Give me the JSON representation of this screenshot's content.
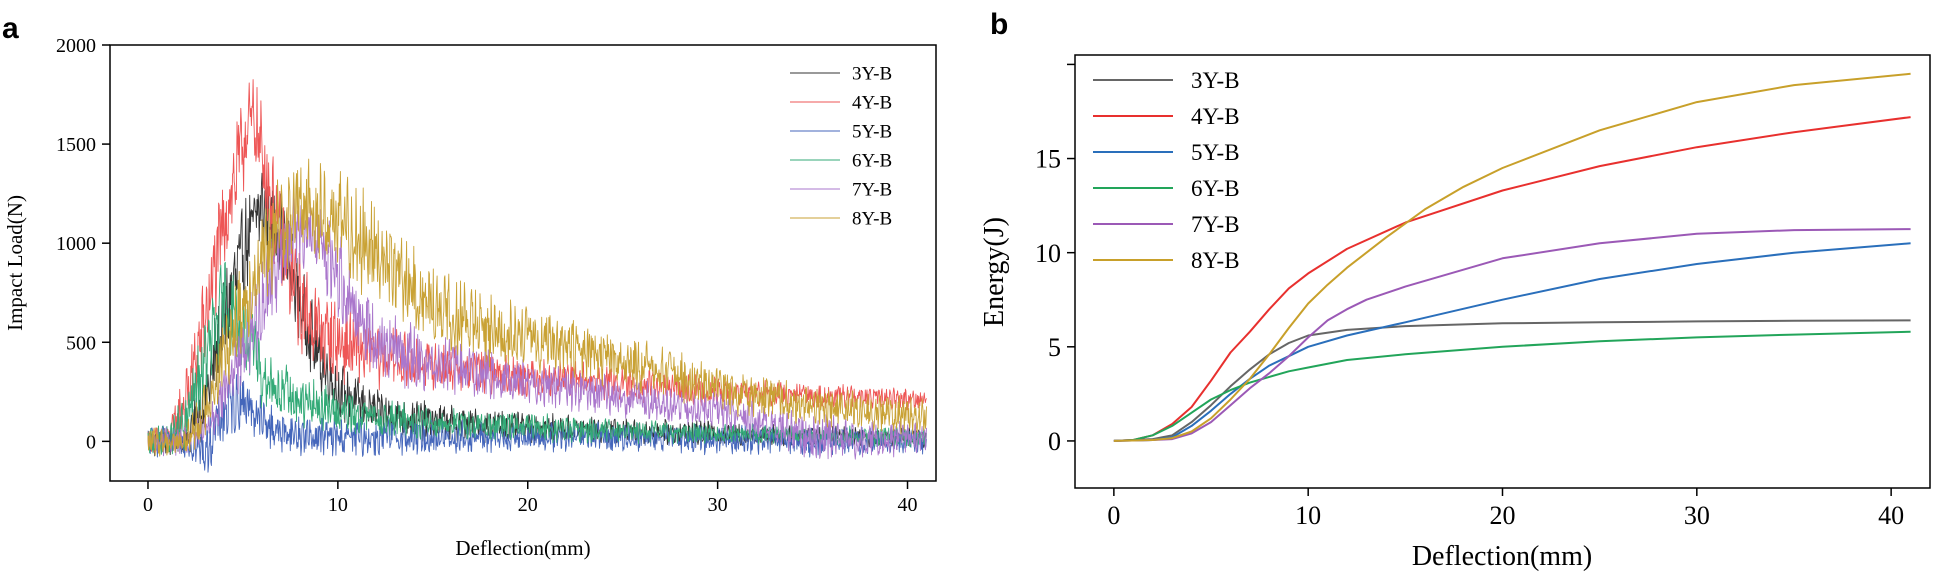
{
  "figure": {
    "panel_a_label": "a",
    "panel_b_label": "b"
  },
  "chart_data": [
    {
      "type": "line",
      "panel": "a",
      "title": "",
      "xlabel": "Deflection(mm)",
      "ylabel": "Impact Load(N)",
      "xlim": [
        -2,
        41.5
      ],
      "ylim": [
        -200,
        2000
      ],
      "xticks": [
        0,
        10,
        20,
        30,
        40
      ],
      "yticks": [
        0,
        500,
        1000,
        1500,
        2000
      ],
      "grid": false,
      "legend_position": "top-right",
      "noise_note": "high-frequency oscillation around the mean curve",
      "series": [
        {
          "name": "3Y-B",
          "color": "#333333",
          "x": [
            0,
            1,
            2,
            3,
            4,
            5,
            6,
            7,
            8,
            9,
            10,
            12,
            14,
            16,
            20,
            25,
            30,
            35,
            41
          ],
          "y": [
            0,
            0,
            10,
            200,
            600,
            950,
            1200,
            1050,
            700,
            420,
            250,
            150,
            110,
            90,
            70,
            50,
            40,
            30,
            20
          ],
          "amplitude": [
            60,
            60,
            80,
            150,
            200,
            200,
            180,
            180,
            160,
            140,
            120,
            90,
            80,
            70,
            60,
            50,
            50,
            40,
            40
          ]
        },
        {
          "name": "4Y-B",
          "color": "#ee5555",
          "x": [
            0,
            1,
            2,
            3,
            4,
            5,
            5.5,
            6,
            7,
            8,
            9,
            10,
            12,
            14,
            16,
            20,
            25,
            30,
            35,
            41
          ],
          "y": [
            0,
            0,
            200,
            600,
            1100,
            1500,
            1650,
            1450,
            1000,
            700,
            560,
            500,
            430,
            400,
            370,
            330,
            290,
            250,
            230,
            210
          ],
          "amplitude": [
            60,
            60,
            150,
            200,
            220,
            200,
            150,
            200,
            220,
            200,
            180,
            160,
            130,
            110,
            90,
            80,
            70,
            60,
            50,
            40
          ]
        },
        {
          "name": "5Y-B",
          "color": "#4466bb",
          "x": [
            0,
            1,
            2,
            3,
            4,
            5,
            6,
            7,
            8,
            10,
            12,
            14,
            16,
            20,
            25,
            30,
            35,
            41
          ],
          "y": [
            0,
            0,
            0,
            -50,
            150,
            220,
            100,
            50,
            30,
            20,
            20,
            20,
            20,
            20,
            20,
            10,
            0,
            0
          ],
          "amplitude": [
            60,
            60,
            60,
            100,
            150,
            120,
            100,
            90,
            80,
            80,
            80,
            70,
            70,
            60,
            60,
            60,
            60,
            50
          ]
        },
        {
          "name": "6Y-B",
          "color": "#33aa77",
          "x": [
            0,
            1,
            2,
            3,
            4,
            5,
            6,
            7,
            8,
            10,
            12,
            14,
            16,
            20,
            25,
            30,
            35,
            41
          ],
          "y": [
            0,
            0,
            100,
            400,
            700,
            550,
            350,
            250,
            200,
            150,
            120,
            100,
            90,
            70,
            50,
            40,
            30,
            20
          ],
          "amplitude": [
            60,
            60,
            120,
            180,
            200,
            180,
            150,
            130,
            110,
            90,
            80,
            70,
            60,
            60,
            50,
            40,
            40,
            40
          ]
        },
        {
          "name": "7Y-B",
          "color": "#aa77cc",
          "x": [
            0,
            1,
            2,
            3,
            4,
            5,
            6,
            7,
            7.5,
            8,
            9,
            10,
            11,
            12,
            14,
            16,
            20,
            25,
            30,
            33,
            35,
            38,
            41
          ],
          "y": [
            0,
            0,
            0,
            50,
            250,
            450,
            700,
            950,
            1050,
            1080,
            1000,
            850,
            650,
            520,
            420,
            380,
            300,
            220,
            150,
            80,
            20,
            10,
            20
          ],
          "amplitude": [
            60,
            60,
            60,
            80,
            120,
            150,
            180,
            180,
            150,
            140,
            150,
            180,
            180,
            160,
            130,
            110,
            90,
            80,
            70,
            80,
            90,
            80,
            60
          ]
        },
        {
          "name": "8Y-B",
          "color": "#c9a235",
          "x": [
            0,
            1,
            2,
            3,
            4,
            5,
            6,
            7,
            8,
            9,
            10,
            11,
            12,
            14,
            16,
            18,
            20,
            22,
            25,
            28,
            30,
            35,
            41
          ],
          "y": [
            0,
            0,
            0,
            150,
            450,
            700,
            900,
            1100,
            1200,
            1150,
            1100,
            1050,
            950,
            750,
            620,
            560,
            520,
            480,
            400,
            320,
            260,
            180,
            120
          ],
          "amplitude": [
            60,
            60,
            60,
            120,
            180,
            200,
            200,
            200,
            200,
            200,
            210,
            220,
            200,
            180,
            160,
            140,
            130,
            120,
            110,
            100,
            90,
            80,
            70
          ]
        }
      ]
    },
    {
      "type": "line",
      "panel": "b",
      "title": "",
      "xlabel": "Deflection(mm)",
      "ylabel": "Energy(J)",
      "xlim": [
        -2,
        42
      ],
      "ylim": [
        -2.5,
        20.5
      ],
      "xticks": [
        0,
        10,
        20,
        30,
        40
      ],
      "yticks": [
        0,
        5,
        10,
        15
      ],
      "grid": false,
      "legend_position": "top-left",
      "series": [
        {
          "name": "3Y-B",
          "color": "#666666",
          "x": [
            0,
            2,
            3,
            4,
            5,
            6,
            7,
            8,
            9,
            10,
            12,
            15,
            20,
            25,
            30,
            35,
            41
          ],
          "y": [
            0,
            0.1,
            0.3,
            1.0,
            1.9,
            2.9,
            3.8,
            4.6,
            5.2,
            5.6,
            5.9,
            6.1,
            6.25,
            6.3,
            6.35,
            6.38,
            6.4
          ]
        },
        {
          "name": "4Y-B",
          "color": "#e8302e",
          "x": [
            0,
            1,
            2,
            3,
            4,
            5,
            6,
            7,
            8,
            9,
            10,
            12,
            15,
            20,
            25,
            30,
            35,
            41
          ],
          "y": [
            0,
            0.05,
            0.3,
            0.9,
            1.8,
            3.2,
            4.7,
            5.8,
            7.0,
            8.1,
            8.9,
            10.2,
            11.6,
            13.3,
            14.6,
            15.6,
            16.4,
            17.2
          ]
        },
        {
          "name": "5Y-B",
          "color": "#2a6fbb",
          "x": [
            0,
            2,
            3,
            4,
            5,
            6,
            7,
            8,
            9,
            10,
            12,
            15,
            20,
            25,
            30,
            35,
            41
          ],
          "y": [
            0,
            0.05,
            0.2,
            0.8,
            1.6,
            2.5,
            3.3,
            4.0,
            4.5,
            5.0,
            5.6,
            6.3,
            7.5,
            8.6,
            9.4,
            10.0,
            10.5
          ]
        },
        {
          "name": "6Y-B",
          "color": "#22a55a",
          "x": [
            0,
            1,
            2,
            3,
            4,
            5,
            6,
            7,
            8,
            9,
            10,
            12,
            15,
            20,
            25,
            30,
            35,
            41
          ],
          "y": [
            0,
            0.05,
            0.3,
            0.8,
            1.5,
            2.2,
            2.7,
            3.1,
            3.4,
            3.7,
            3.9,
            4.3,
            4.6,
            5.0,
            5.3,
            5.5,
            5.65,
            5.8
          ]
        },
        {
          "name": "7Y-B",
          "color": "#9b59b6",
          "x": [
            0,
            2,
            3,
            4,
            5,
            6,
            7,
            8,
            9,
            10,
            11,
            12,
            13,
            15,
            20,
            25,
            30,
            35,
            41
          ],
          "y": [
            0,
            0.05,
            0.1,
            0.4,
            1.0,
            1.9,
            2.8,
            3.6,
            4.5,
            5.5,
            6.4,
            7.0,
            7.5,
            8.2,
            9.7,
            10.5,
            11.0,
            11.2,
            11.25
          ]
        },
        {
          "name": "8Y-B",
          "color": "#c8a02a",
          "x": [
            0,
            2,
            3,
            4,
            5,
            6,
            7,
            8,
            9,
            10,
            11,
            12,
            14,
            16,
            18,
            20,
            25,
            30,
            35,
            41
          ],
          "y": [
            0,
            0.05,
            0.15,
            0.5,
            1.2,
            2.2,
            3.3,
            4.6,
            6.0,
            7.3,
            8.3,
            9.2,
            10.8,
            12.3,
            13.5,
            14.5,
            16.5,
            18.0,
            18.9,
            19.5
          ]
        }
      ]
    }
  ]
}
